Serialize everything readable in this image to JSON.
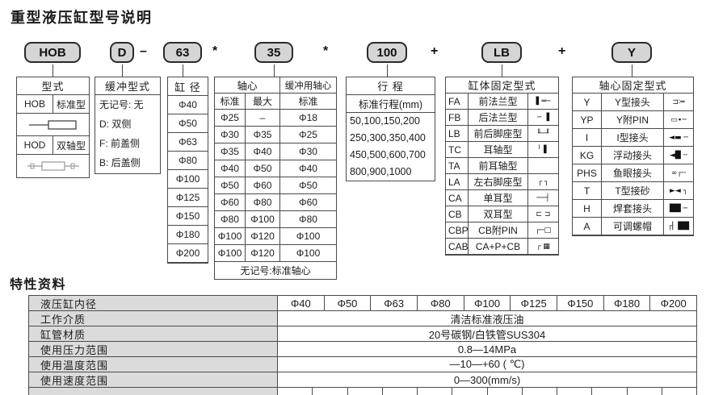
{
  "page": {
    "title": "重型液压缸型号说明",
    "section2_title": "特性资料"
  },
  "model_code": {
    "boxes": [
      "HOB",
      "D",
      "63",
      "35",
      "100",
      "LB",
      "Y"
    ],
    "separators": [
      "–",
      "*",
      "*",
      "+",
      "+"
    ]
  },
  "type_table": {
    "header": "型式",
    "rows": [
      {
        "code": "HOB",
        "name": "标准型"
      },
      {
        "code": "HOD",
        "name": "双轴型"
      }
    ]
  },
  "cushion_table": {
    "header": "缓冲型式",
    "items": [
      "无记号: 无",
      "D: 双侧",
      "F: 前盖侧",
      "B: 后盖侧"
    ]
  },
  "bore_table": {
    "header": "缸 径",
    "items": [
      "Φ40",
      "Φ50",
      "Φ63",
      "Φ80",
      "Φ100",
      "Φ125",
      "Φ150",
      "Φ180",
      "Φ200"
    ]
  },
  "shaft_table": {
    "header_main": "轴心",
    "header_cushion": "缓冲用轴心",
    "sub_headers": [
      "标准",
      "最大",
      "标准"
    ],
    "rows": [
      [
        "Φ25",
        "–",
        "Φ18"
      ],
      [
        "Φ30",
        "Φ35",
        "Φ25"
      ],
      [
        "Φ35",
        "Φ40",
        "Φ30"
      ],
      [
        "Φ40",
        "Φ50",
        "Φ40"
      ],
      [
        "Φ50",
        "Φ60",
        "Φ50"
      ],
      [
        "Φ60",
        "Φ80",
        "Φ60"
      ],
      [
        "Φ80",
        "Φ100",
        "Φ80"
      ],
      [
        "Φ100",
        "Φ120",
        "Φ100"
      ],
      [
        "Φ100",
        "Φ120",
        "Φ100"
      ]
    ],
    "footer": "无记号:标准轴心"
  },
  "stroke_table": {
    "header": "行 程",
    "sub_header": "标准行程(mm)",
    "lines": [
      "50,100,150,200",
      "250,300,350,400",
      "450,500,600,700",
      "800,900,1000"
    ]
  },
  "body_mount_table": {
    "header": "缸体固定型式",
    "rows": [
      {
        "code": "FA",
        "name": "前法兰型",
        "icon_glyph": "▌═─"
      },
      {
        "code": "FB",
        "name": "后法兰型",
        "icon_glyph": "─ ▐"
      },
      {
        "code": "LB",
        "name": "前后脚座型",
        "icon_glyph": "╙─╜"
      },
      {
        "code": "TC",
        "name": "耳轴型",
        "icon_glyph": "╵ ▌"
      },
      {
        "code": "TA",
        "name": "前耳轴型",
        "icon_glyph": ""
      },
      {
        "code": "LA",
        "name": "左右脚座型",
        "icon_glyph": "┌ ┐"
      },
      {
        "code": "CA",
        "name": "单耳型",
        "icon_glyph": "──┤"
      },
      {
        "code": "CB",
        "name": "双耳型",
        "icon_glyph": "⊏ ⊐"
      },
      {
        "code": "CBP",
        "name": "CB附PIN",
        "icon_glyph": "┌─□"
      },
      {
        "code": "CAB",
        "name": "CA+P+CB",
        "icon_glyph": "┌ ▦"
      }
    ]
  },
  "shaft_mount_table": {
    "header": "轴心固定型式",
    "rows": [
      {
        "code": "Y",
        "name": "Y型接头",
        "icon_glyph": "⊐∶═"
      },
      {
        "code": "YP",
        "name": "Y附PIN",
        "icon_glyph": "▭∙─"
      },
      {
        "code": "I",
        "name": "I型接头",
        "icon_glyph": "◄▬ ─"
      },
      {
        "code": "KG",
        "name": "浮动接头",
        "icon_glyph": "◄█ ╌"
      },
      {
        "code": "PHS",
        "name": "鱼眼接头",
        "icon_glyph": "∞┌╌"
      },
      {
        "code": "T",
        "name": "T型接砂",
        "icon_glyph": "►◄ ┐"
      },
      {
        "code": "H",
        "name": "焊套接头",
        "icon_glyph": "██ ─"
      },
      {
        "code": "A",
        "name": "可调螺帽",
        "icon_glyph": "┌▏██"
      }
    ]
  },
  "spec_table": {
    "bore_row": {
      "label": "液压缸内径",
      "values": [
        "Φ40",
        "Φ50",
        "Φ63",
        "Φ80",
        "Φ100",
        "Φ125",
        "Φ150",
        "Φ180",
        "Φ200"
      ]
    },
    "info_rows": [
      {
        "label": "工作介质",
        "value": "清洁标准液压油"
      },
      {
        "label": "缸管材质",
        "value": "20号碳钢/白铁管SUS304"
      },
      {
        "label": "使用压力范围",
        "value": "0.8—14MPa"
      },
      {
        "label": "使用温度范围",
        "value": "—10—+60 ( ℃)"
      },
      {
        "label": "使用速度范围",
        "value": "0—300(mm/s)"
      }
    ]
  }
}
